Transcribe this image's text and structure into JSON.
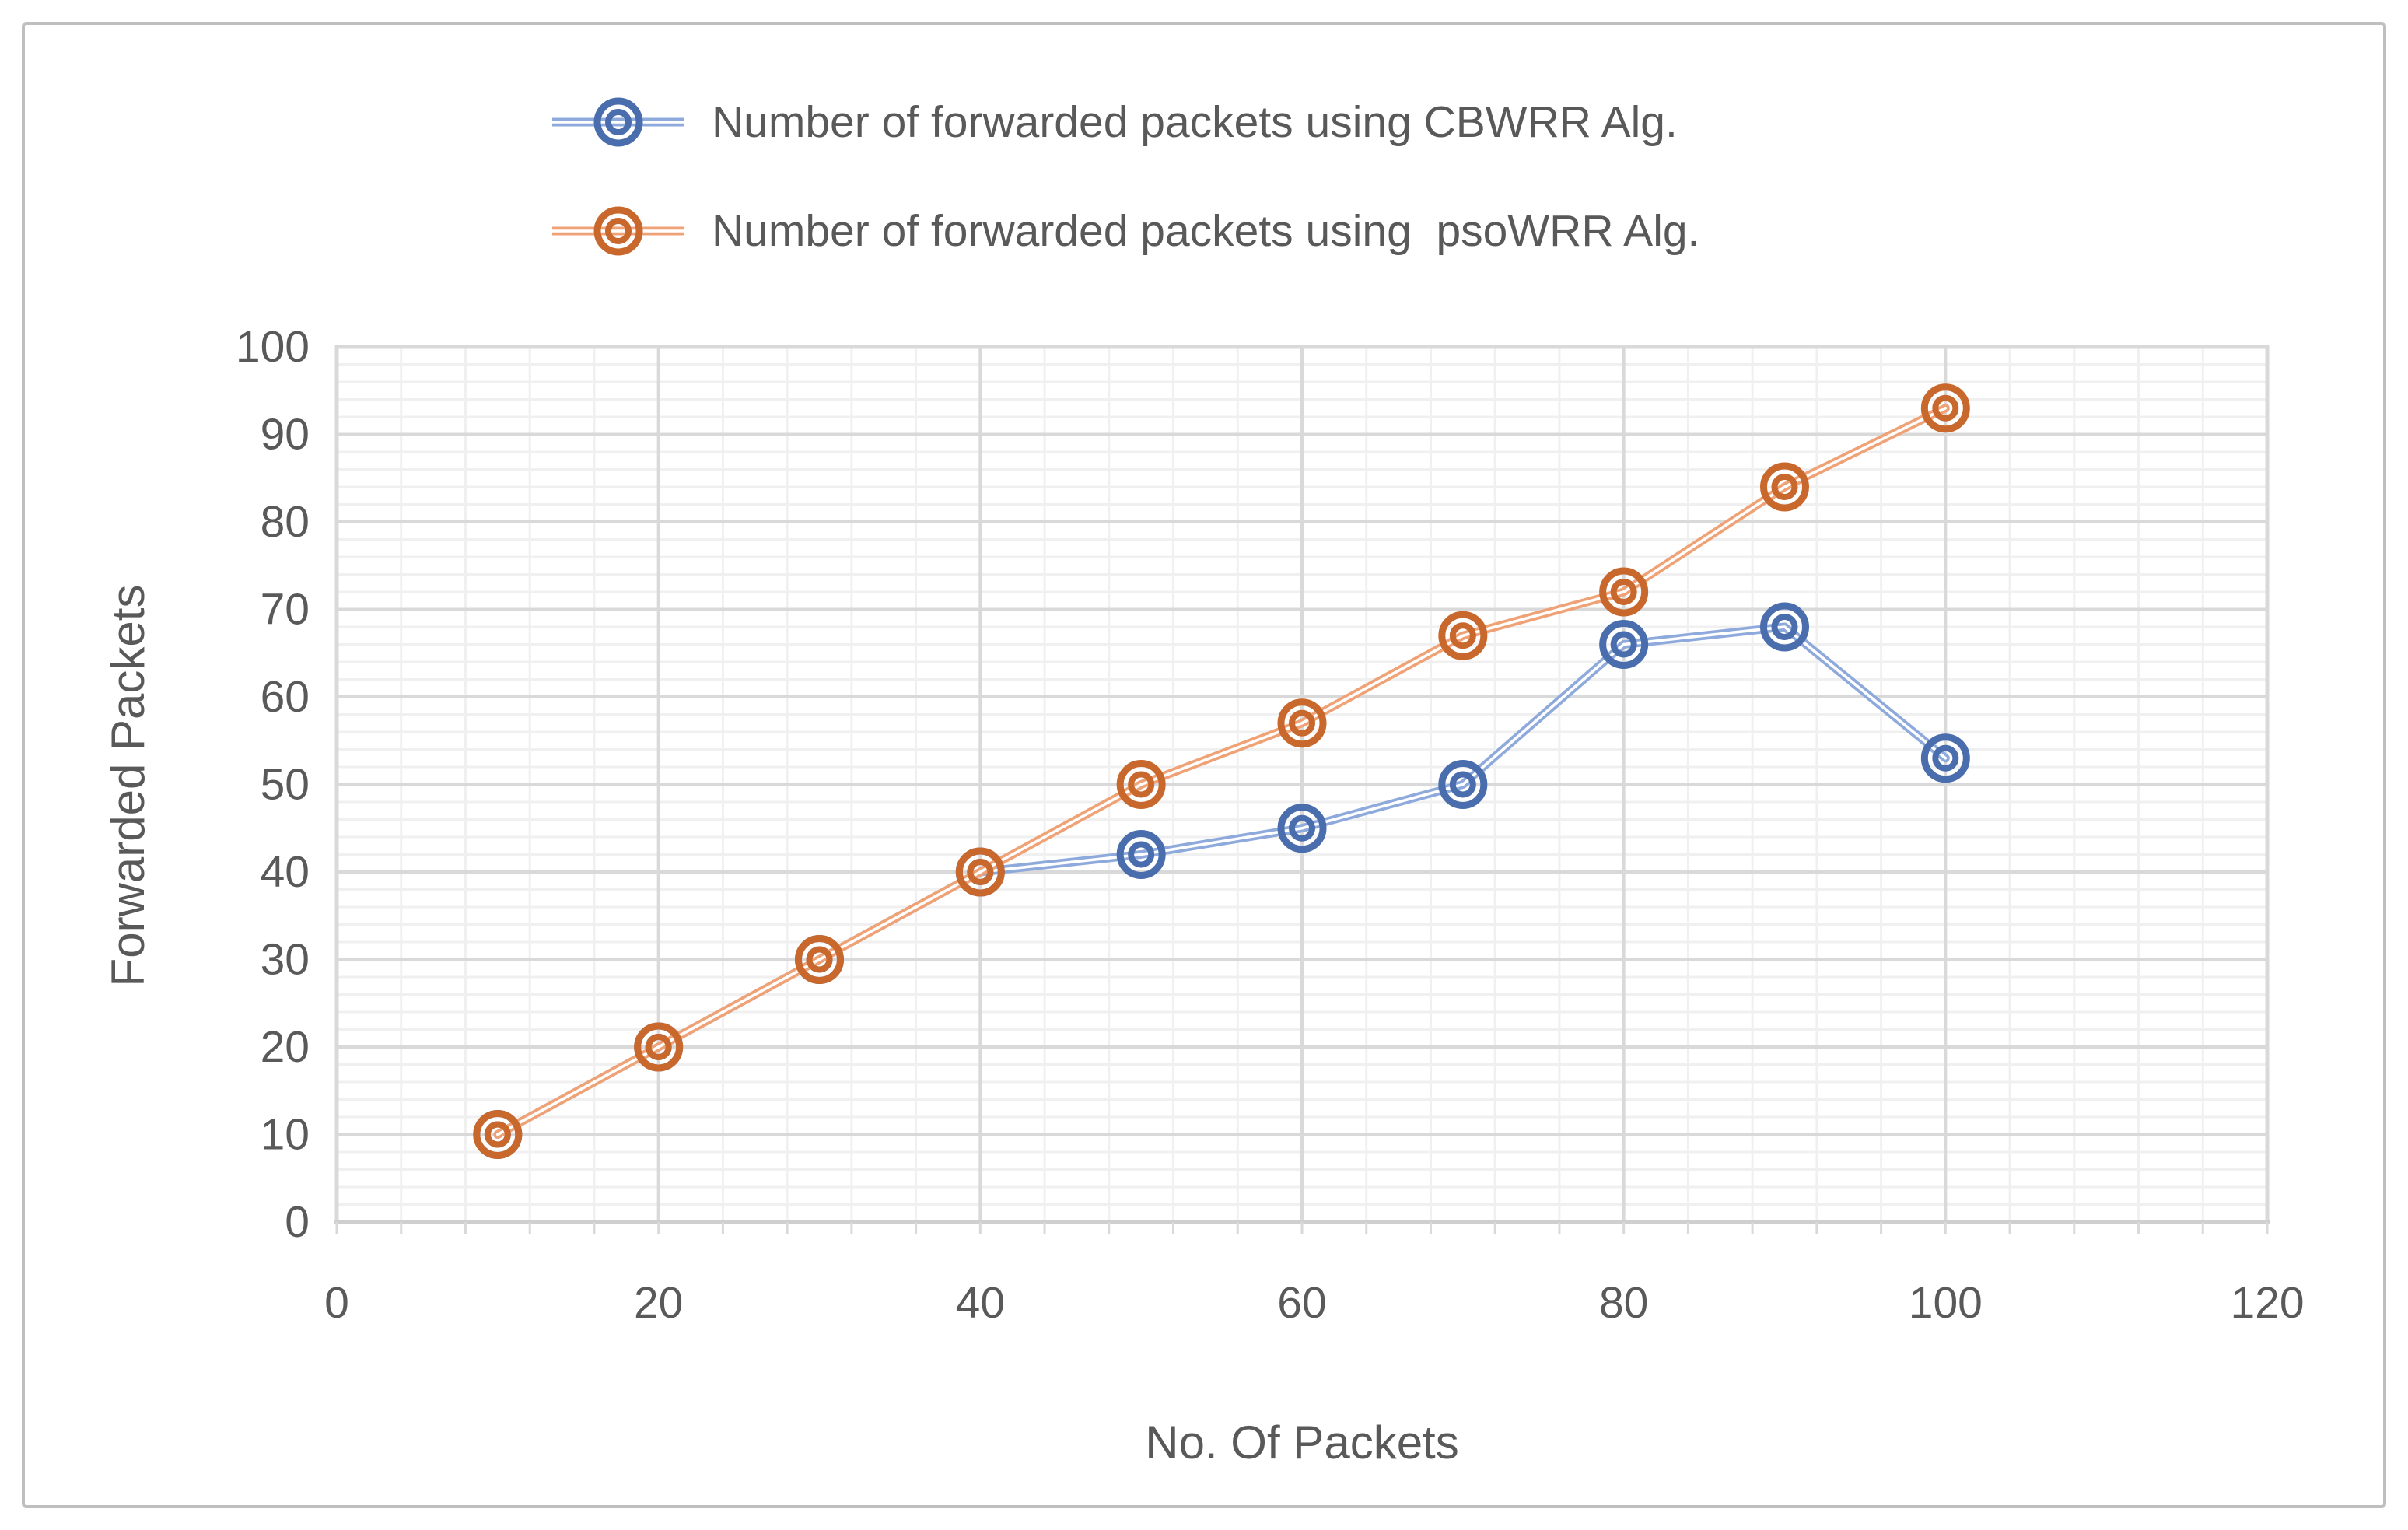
{
  "figure": {
    "background": "#ffffff",
    "border_color": "#bfbfbf"
  },
  "legend": {
    "position": "top-left-of-plot",
    "items": [
      {
        "label": "Number of forwarded packets using CBWRR Alg.",
        "series_id": "cbwrr"
      },
      {
        "label": "Number of forwarded packets using  psoWRR Alg.",
        "series_id": "psowrr"
      }
    ]
  },
  "chart_data": {
    "type": "line",
    "title": "",
    "xlabel": "No. Of Packets",
    "ylabel": "Forwarded Packets",
    "x": [
      10,
      20,
      30,
      40,
      50,
      60,
      70,
      80,
      90,
      100
    ],
    "series": [
      {
        "id": "cbwrr",
        "name": "Number of forwarded packets using CBWRR Alg.",
        "line_color": "#8ea9db",
        "marker_color": "#4a6dad",
        "values": [
          10,
          20,
          30,
          40,
          42,
          45,
          50,
          66,
          68,
          53
        ]
      },
      {
        "id": "psowrr",
        "name": "Number of forwarded packets using  psoWRR Alg.",
        "line_color": "#f0a277",
        "marker_color": "#c9682c",
        "values": [
          10,
          20,
          30,
          40,
          50,
          57,
          67,
          72,
          84,
          93
        ]
      }
    ],
    "xlim": [
      0,
      120
    ],
    "ylim": [
      0,
      100
    ],
    "x_ticks": [
      0,
      20,
      40,
      60,
      80,
      100,
      120
    ],
    "y_ticks": [
      0,
      10,
      20,
      30,
      40,
      50,
      60,
      70,
      80,
      90,
      100
    ],
    "x_major": 20,
    "x_minor": 4,
    "y_major": 10,
    "y_minor": 2,
    "grid": {
      "on": true,
      "major_color": "#d9d9d9",
      "minor_color": "#f0f0f0"
    },
    "axis_line_color": "#cfcfcf",
    "text_color": "#595959",
    "legend_position": "top"
  }
}
